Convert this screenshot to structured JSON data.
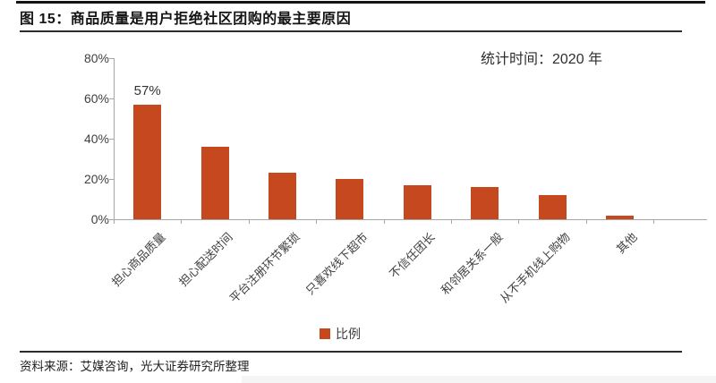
{
  "header": {
    "title": "图 15：商品质量是用户拒绝社区团购的最主要原因"
  },
  "note": {
    "stat_time": "统计时间：2020 年"
  },
  "legend": {
    "label": "比例"
  },
  "footer": {
    "source": "资料来源：艾媒咨询，光大证券研究所整理"
  },
  "colors": {
    "bar": "#C5481F",
    "axis": "#A6A6A6",
    "title_text": "#141414",
    "label_text": "#3F3F3F"
  },
  "chart_data": {
    "type": "bar",
    "title": "图 15：商品质量是用户拒绝社区团购的最主要原因",
    "categories": [
      "担心商品质量",
      "担心配送时间",
      "平台注册环节繁琐",
      "只喜欢线下超市",
      "不信任团长",
      "和邻居关系一般",
      "从不手机线上购物",
      "其他"
    ],
    "values": [
      57,
      36,
      23,
      20,
      17,
      16,
      12,
      2
    ],
    "unit": "%",
    "ylim": [
      0,
      80
    ],
    "yticks": [
      0,
      20,
      40,
      60,
      80
    ],
    "ytick_labels": [
      "0%",
      "20%",
      "40%",
      "60%",
      "80%"
    ],
    "data_label": {
      "category": "担心商品质量",
      "text": "57%",
      "index": 0
    },
    "legend": [
      "比例"
    ],
    "legend_position": "bottom",
    "grid": false,
    "note": "统计时间：2020 年",
    "source": "资料来源：艾媒咨询，光大证券研究所整理"
  }
}
